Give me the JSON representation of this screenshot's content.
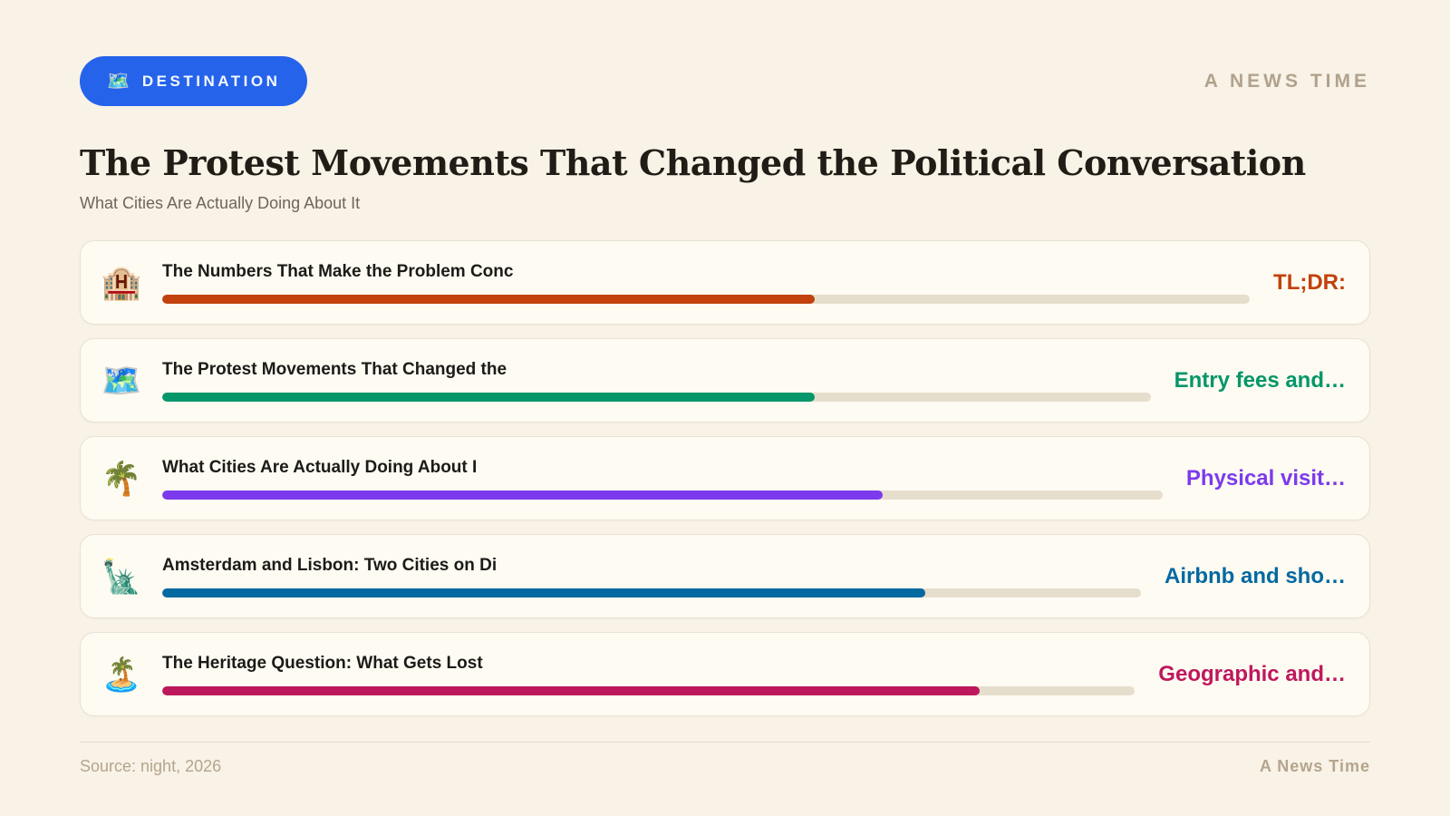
{
  "badge": {
    "icon": "🗺️",
    "label": "DESTINATION"
  },
  "masthead": "A NEWS TIME",
  "title": "The Protest Movements That Changed the Political Conversation",
  "subtitle": "What Cities Are Actually Doing About It",
  "footer": {
    "source": "Source: night, 2026",
    "brand": "A News Time"
  },
  "colors": {
    "page_bg": "#F8F2E7",
    "card_bg": "#FDFBF2",
    "card_border": "#EAE1D2",
    "badge_bg": "#2563EB",
    "track": "#E6DECD",
    "masthead_text": "#B1A28C"
  },
  "chart_data": {
    "type": "bar",
    "orientation": "horizontal",
    "value_note": "percent of track filled, estimated from bar lengths",
    "xlim": [
      0,
      100
    ],
    "items": [
      {
        "icon": "🏨",
        "icon_name": "hotel-emoji",
        "title": "The Numbers That Make the Problem Conc",
        "value": 60,
        "color": "#C2410C",
        "label": "TL;DR:"
      },
      {
        "icon": "🗺️",
        "icon_name": "world-map-emoji",
        "title": "The Protest Movements That Changed the",
        "value": 66,
        "color": "#059669",
        "label": "Entry fees and…"
      },
      {
        "icon": "🌴",
        "icon_name": "palm-tree-emoji",
        "title": "What Cities Are Actually Doing About I",
        "value": 72,
        "color": "#7C3AED",
        "label": "Physical visit…"
      },
      {
        "icon": "🗽",
        "icon_name": "statue-of-liberty-emoji",
        "title": "Amsterdam and Lisbon: Two Cities on Di",
        "value": 78,
        "color": "#0369A1",
        "label": "Airbnb and sho…"
      },
      {
        "icon": "🏝️",
        "icon_name": "desert-island-emoji",
        "title": "The Heritage Question: What Gets Lost",
        "value": 84,
        "color": "#BE185D",
        "label": "Geographic and…"
      }
    ]
  }
}
